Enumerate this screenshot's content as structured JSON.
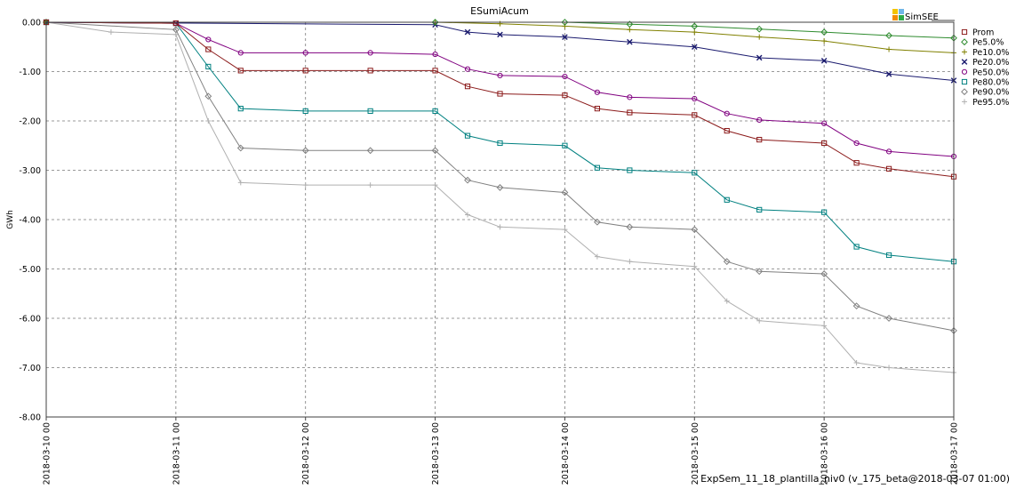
{
  "chart_data": {
    "type": "line",
    "title": "ESumiAcum",
    "xlabel": "",
    "ylabel": "GWh",
    "x_ticks": [
      "2018-03-10 00",
      "2018-03-11 00",
      "2018-03-12 00",
      "2018-03-13 00",
      "2018-03-14 00",
      "2018-03-15 00",
      "2018-03-16 00",
      "2018-03-17 00"
    ],
    "x_range_days": [
      0,
      7
    ],
    "y_ticks": [
      "0.00",
      "-1.00",
      "-2.00",
      "-3.00",
      "-4.00",
      "-5.00",
      "-6.00",
      "-7.00",
      "-8.00"
    ],
    "ylim": [
      -8,
      0
    ],
    "grid": true,
    "legend_position": "right",
    "brand": "SimSEE",
    "footer": "ExpSem_11_18_plantilla_niv0 (v_175_beta@2018-03-07 01:00)",
    "series": [
      {
        "name": "Prom",
        "color": "#8b1a1a",
        "marker": "square",
        "x": [
          "2018-03-10 00",
          "2018-03-11 00",
          "2018-03-11 06",
          "2018-03-11 12",
          "2018-03-12 00",
          "2018-03-12 12",
          "2018-03-13 00",
          "2018-03-13 06",
          "2018-03-13 12",
          "2018-03-14 00",
          "2018-03-14 06",
          "2018-03-14 12",
          "2018-03-15 00",
          "2018-03-15 06",
          "2018-03-15 12",
          "2018-03-16 00",
          "2018-03-16 06",
          "2018-03-16 12",
          "2018-03-17 00"
        ],
        "y": [
          0,
          -0.02,
          -0.55,
          -0.98,
          -0.98,
          -0.98,
          -0.98,
          -1.3,
          -1.45,
          -1.48,
          -1.75,
          -1.83,
          -1.88,
          -2.2,
          -2.38,
          -2.45,
          -2.85,
          -2.97,
          -3.13
        ]
      },
      {
        "name": "Pe5.0%",
        "color": "#2e8b2e",
        "marker": "diamond",
        "x": [
          "2018-03-10 00",
          "2018-03-13 00",
          "2018-03-14 00",
          "2018-03-14 12",
          "2018-03-15 00",
          "2018-03-15 12",
          "2018-03-16 00",
          "2018-03-16 12",
          "2018-03-17 00"
        ],
        "y": [
          0,
          0,
          0,
          -0.04,
          -0.08,
          -0.14,
          -0.2,
          -0.27,
          -0.32
        ]
      },
      {
        "name": "Pe10.0%",
        "color": "#808000",
        "marker": "plus",
        "x": [
          "2018-03-10 00",
          "2018-03-13 00",
          "2018-03-13 12",
          "2018-03-14 00",
          "2018-03-14 12",
          "2018-03-15 00",
          "2018-03-15 12",
          "2018-03-16 00",
          "2018-03-16 12",
          "2018-03-17 00"
        ],
        "y": [
          0,
          0,
          -0.03,
          -0.08,
          -0.15,
          -0.2,
          -0.3,
          -0.38,
          -0.55,
          -0.62
        ]
      },
      {
        "name": "Pe20.0%",
        "color": "#1a1a6e",
        "marker": "x",
        "x": [
          "2018-03-10 00",
          "2018-03-13 00",
          "2018-03-13 06",
          "2018-03-13 12",
          "2018-03-14 00",
          "2018-03-14 12",
          "2018-03-15 00",
          "2018-03-15 12",
          "2018-03-16 00",
          "2018-03-16 12",
          "2018-03-17 00"
        ],
        "y": [
          0,
          -0.05,
          -0.2,
          -0.25,
          -0.3,
          -0.4,
          -0.5,
          -0.72,
          -0.78,
          -1.05,
          -1.18
        ]
      },
      {
        "name": "Pe50.0%",
        "color": "#800080",
        "marker": "circle",
        "x": [
          "2018-03-10 00",
          "2018-03-11 00",
          "2018-03-11 06",
          "2018-03-11 12",
          "2018-03-12 00",
          "2018-03-12 12",
          "2018-03-13 00",
          "2018-03-13 06",
          "2018-03-13 12",
          "2018-03-14 00",
          "2018-03-14 06",
          "2018-03-14 12",
          "2018-03-15 00",
          "2018-03-15 06",
          "2018-03-15 12",
          "2018-03-16 00",
          "2018-03-16 06",
          "2018-03-16 12",
          "2018-03-17 00"
        ],
        "y": [
          0,
          -0.02,
          -0.35,
          -0.62,
          -0.62,
          -0.62,
          -0.65,
          -0.95,
          -1.08,
          -1.1,
          -1.42,
          -1.52,
          -1.55,
          -1.85,
          -1.98,
          -2.05,
          -2.45,
          -2.62,
          -2.72
        ]
      },
      {
        "name": "Pe80.0%",
        "color": "#008080",
        "marker": "square",
        "x": [
          "2018-03-10 00",
          "2018-03-11 00",
          "2018-03-11 06",
          "2018-03-11 12",
          "2018-03-12 00",
          "2018-03-12 12",
          "2018-03-13 00",
          "2018-03-13 06",
          "2018-03-13 12",
          "2018-03-14 00",
          "2018-03-14 06",
          "2018-03-14 12",
          "2018-03-15 00",
          "2018-03-15 06",
          "2018-03-15 12",
          "2018-03-16 00",
          "2018-03-16 06",
          "2018-03-16 12",
          "2018-03-17 00"
        ],
        "y": [
          0,
          -0.02,
          -0.9,
          -1.75,
          -1.8,
          -1.8,
          -1.8,
          -2.3,
          -2.45,
          -2.5,
          -2.95,
          -3.0,
          -3.05,
          -3.6,
          -3.8,
          -3.85,
          -4.55,
          -4.72,
          -4.85
        ]
      },
      {
        "name": "Pe90.0%",
        "color": "#808080",
        "marker": "diamond",
        "x": [
          "2018-03-10 00",
          "2018-03-11 00",
          "2018-03-11 06",
          "2018-03-11 12",
          "2018-03-12 00",
          "2018-03-12 12",
          "2018-03-13 00",
          "2018-03-13 06",
          "2018-03-13 12",
          "2018-03-14 00",
          "2018-03-14 06",
          "2018-03-14 12",
          "2018-03-15 00",
          "2018-03-15 06",
          "2018-03-15 12",
          "2018-03-16 00",
          "2018-03-16 06",
          "2018-03-16 12",
          "2018-03-17 00"
        ],
        "y": [
          0,
          -0.15,
          -1.5,
          -2.55,
          -2.6,
          -2.6,
          -2.6,
          -3.2,
          -3.35,
          -3.45,
          -4.05,
          -4.15,
          -4.2,
          -4.85,
          -5.05,
          -5.1,
          -5.75,
          -6.0,
          -6.25
        ]
      },
      {
        "name": "Pe95.0%",
        "color": "#b0b0b0",
        "marker": "plus",
        "x": [
          "2018-03-10 00",
          "2018-03-10 12",
          "2018-03-11 00",
          "2018-03-11 06",
          "2018-03-11 12",
          "2018-03-12 00",
          "2018-03-12 12",
          "2018-03-13 00",
          "2018-03-13 06",
          "2018-03-13 12",
          "2018-03-14 00",
          "2018-03-14 06",
          "2018-03-14 12",
          "2018-03-15 00",
          "2018-03-15 06",
          "2018-03-15 12",
          "2018-03-16 00",
          "2018-03-16 06",
          "2018-03-16 12",
          "2018-03-17 00"
        ],
        "y": [
          0,
          -0.2,
          -0.25,
          -2.0,
          -3.25,
          -3.3,
          -3.3,
          -3.3,
          -3.9,
          -4.15,
          -4.2,
          -4.75,
          -4.85,
          -4.95,
          -5.65,
          -6.05,
          -6.15,
          -6.9,
          -7.0,
          -7.1
        ]
      }
    ]
  }
}
